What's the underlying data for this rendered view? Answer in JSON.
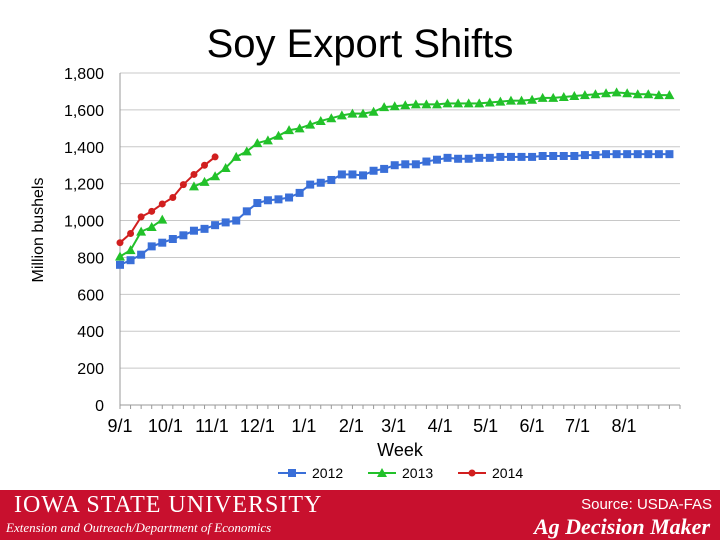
{
  "slide": {
    "title": "Soy Export Shifts"
  },
  "footer": {
    "university": "IOWA STATE UNIVERSITY",
    "department": "Extension and Outreach/Department of Economics",
    "source": "Source: USDA-FAS",
    "brand": "Ag Decision Maker",
    "colors": {
      "background": "#c8102e",
      "text": "#ffffff"
    }
  },
  "chart_data": {
    "type": "line",
    "title": "",
    "xlabel": "Week",
    "ylabel": "Million bushels",
    "ylim": [
      0,
      1800
    ],
    "yticks": [
      0,
      200,
      400,
      600,
      800,
      1000,
      1200,
      1400,
      1600,
      1800
    ],
    "ytick_labels": [
      "0",
      "200",
      "400",
      "600",
      "800",
      "1,000",
      "1,200",
      "1,400",
      "1,600",
      "1,800"
    ],
    "xlim": [
      0,
      53
    ],
    "xticks": [
      {
        "label": "9/1",
        "week": 0
      },
      {
        "label": "10/1",
        "week": 4.3
      },
      {
        "label": "11/1",
        "week": 8.7
      },
      {
        "label": "12/1",
        "week": 13
      },
      {
        "label": "1/1",
        "week": 17.4
      },
      {
        "label": "2/1",
        "week": 21.9
      },
      {
        "label": "3/1",
        "week": 25.9
      },
      {
        "label": "4/1",
        "week": 30.3
      },
      {
        "label": "5/1",
        "week": 34.6
      },
      {
        "label": "6/1",
        "week": 39
      },
      {
        "label": "7/1",
        "week": 43.3
      },
      {
        "label": "8/1",
        "week": 47.7
      }
    ],
    "grid": true,
    "legend_position": "bottom",
    "series": [
      {
        "name": "2012",
        "color": "#3a6fd8",
        "marker": "square",
        "x": [
          0,
          1,
          2,
          3,
          4,
          5,
          6,
          7,
          8,
          9,
          10,
          11,
          12,
          13,
          14,
          15,
          16,
          17,
          18,
          19,
          20,
          21,
          22,
          23,
          24,
          25,
          26,
          27,
          28,
          29,
          30,
          31,
          32,
          33,
          34,
          35,
          36,
          37,
          38,
          39,
          40,
          41,
          42,
          43,
          44,
          45,
          46,
          47,
          48,
          49,
          50,
          51,
          52
        ],
        "values": [
          760,
          785,
          815,
          860,
          880,
          900,
          920,
          945,
          955,
          975,
          990,
          1000,
          1050,
          1095,
          1110,
          1115,
          1125,
          1150,
          1195,
          1205,
          1220,
          1250,
          1250,
          1245,
          1270,
          1280,
          1300,
          1305,
          1305,
          1320,
          1330,
          1340,
          1335,
          1335,
          1340,
          1340,
          1345,
          1345,
          1345,
          1345,
          1350,
          1350,
          1350,
          1350,
          1355,
          1355,
          1360,
          1360,
          1360,
          1360,
          1360,
          1360,
          1360
        ]
      },
      {
        "name": "2013",
        "color": "#22c12a",
        "marker": "triangle",
        "x": [
          0,
          1,
          2,
          3,
          4,
          7,
          8,
          9,
          10,
          11,
          12,
          13,
          14,
          15,
          16,
          17,
          18,
          19,
          20,
          21,
          22,
          23,
          24,
          25,
          26,
          27,
          28,
          29,
          30,
          31,
          32,
          33,
          34,
          35,
          36,
          37,
          38,
          39,
          40,
          41,
          42,
          43,
          44,
          45,
          46,
          47,
          48,
          49,
          50,
          51,
          52
        ],
        "values": [
          805,
          840,
          940,
          965,
          1005,
          1185,
          1210,
          1240,
          1285,
          1345,
          1375,
          1420,
          1435,
          1460,
          1490,
          1500,
          1520,
          1540,
          1555,
          1570,
          1580,
          1580,
          1590,
          1615,
          1620,
          1625,
          1630,
          1630,
          1630,
          1635,
          1635,
          1635,
          1635,
          1640,
          1645,
          1650,
          1650,
          1655,
          1665,
          1665,
          1670,
          1675,
          1680,
          1685,
          1690,
          1695,
          1690,
          1685,
          1685,
          1680,
          1680
        ]
      },
      {
        "name": "2014",
        "color": "#d11f1f",
        "marker": "circle",
        "x": [
          0,
          1,
          2,
          3,
          4,
          5,
          6,
          7,
          8,
          9
        ],
        "values": [
          880,
          930,
          1020,
          1050,
          1090,
          1125,
          1195,
          1250,
          1300,
          1345
        ]
      }
    ]
  }
}
